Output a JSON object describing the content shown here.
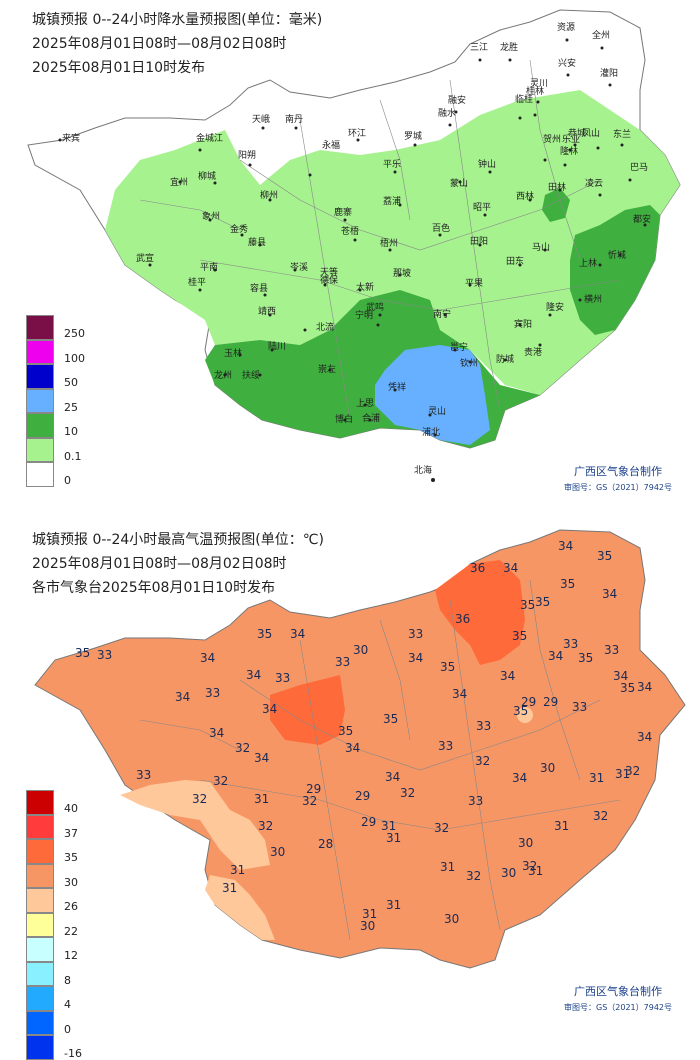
{
  "rain": {
    "title": "城镇预报 0--24小时降水量预报图(单位：毫米)",
    "period": "2025年08月01日08时—08月02日08时",
    "issued": "2025年08月01日10时发布",
    "credit": "广西区气象台制作",
    "map_number": "审图号：GS（2021）7942号",
    "legend": [
      {
        "label": "250",
        "color": "#7a0f47"
      },
      {
        "label": "100",
        "color": "#ee00ee"
      },
      {
        "label": "50",
        "color": "#0000cc"
      },
      {
        "label": "25",
        "color": "#66b0ff"
      },
      {
        "label": "10",
        "color": "#3fb03f"
      },
      {
        "label": "0.1",
        "color": "#a6f28f"
      },
      {
        "label": "0",
        "color": "#ffffff"
      }
    ],
    "cities": [
      "资源",
      "全州",
      "三江",
      "龙胜",
      "兴安",
      "灌阳",
      "灵川",
      "桂林",
      "恭城",
      "临桂",
      "融安",
      "融水",
      "天峨",
      "南丹",
      "环江",
      "罗城",
      "永福",
      "阳朔",
      "平乐",
      "钟山",
      "贺州",
      "隆林",
      "乐业",
      "凤山",
      "东兰",
      "金城江",
      "宜州",
      "柳城",
      "柳州",
      "鹿寨",
      "荔浦",
      "蒙山",
      "昭平",
      "西林",
      "田林",
      "凌云",
      "巴马",
      "都安",
      "忻城",
      "象州",
      "金秀",
      "藤县",
      "苍梧",
      "梧州",
      "百色",
      "田阳",
      "田东",
      "马山",
      "上林",
      "来宾",
      "武宣",
      "平南",
      "岑溪",
      "那坡",
      "德保",
      "平果",
      "隆安",
      "宾阳",
      "贵港",
      "桂平",
      "容县",
      "靖西",
      "天等",
      "大新",
      "武鸣",
      "南宁",
      "横州",
      "北流",
      "玉林",
      "陆川",
      "扶绥",
      "龙州",
      "崇左",
      "宁明",
      "凭祥",
      "上思",
      "邕宁",
      "钦州",
      "防城",
      "灵山",
      "浦北",
      "博白",
      "合浦",
      "北海",
      "东兴",
      "防城港",
      "涠洲岛"
    ]
  },
  "temperature": {
    "title": "城镇预报 0--24小时最高气温预报图(单位：℃)",
    "period": "2025年08月01日08时—08月02日08时",
    "issued": "各市气象台2025年08月01日10时发布",
    "credit": "广西区气象台制作",
    "map_number": "审图号：GS（2021）7942号",
    "legend": [
      {
        "label": "40",
        "color": "#cc0000"
      },
      {
        "label": "37",
        "color": "#ff3b3b"
      },
      {
        "label": "35",
        "color": "#ff6a3a"
      },
      {
        "label": "30",
        "color": "#f79665"
      },
      {
        "label": "26",
        "color": "#ffc89a"
      },
      {
        "label": "22",
        "color": "#ffff99"
      },
      {
        "label": "12",
        "color": "#c8ffff"
      },
      {
        "label": "8",
        "color": "#88f0ff"
      },
      {
        "label": "4",
        "color": "#22aaff"
      },
      {
        "label": "0",
        "color": "#0066ff"
      },
      {
        "label": "-16",
        "color": "#0033ee"
      }
    ],
    "values": [
      "34",
      "35",
      "36",
      "34",
      "35",
      "34",
      "35",
      "35",
      "36",
      "35",
      "33",
      "35",
      "34",
      "34",
      "34",
      "33",
      "33",
      "30",
      "34",
      "35",
      "34",
      "34",
      "33",
      "35",
      "33",
      "34",
      "35",
      "34",
      "35",
      "33",
      "34",
      "33",
      "34",
      "35",
      "35",
      "34",
      "33",
      "35",
      "29",
      "33",
      "34",
      "34",
      "32",
      "34",
      "34",
      "34",
      "33",
      "32",
      "34",
      "29",
      "30",
      "31",
      "31",
      "32",
      "33",
      "32",
      "32",
      "32",
      "29",
      "29",
      "32",
      "33",
      "31",
      "30",
      "32",
      "31",
      "31",
      "32",
      "29",
      "31",
      "31",
      "32",
      "32",
      "28",
      "31",
      "32",
      "30",
      "31",
      "31",
      "30",
      "31",
      "31",
      "30",
      "30"
    ]
  }
}
